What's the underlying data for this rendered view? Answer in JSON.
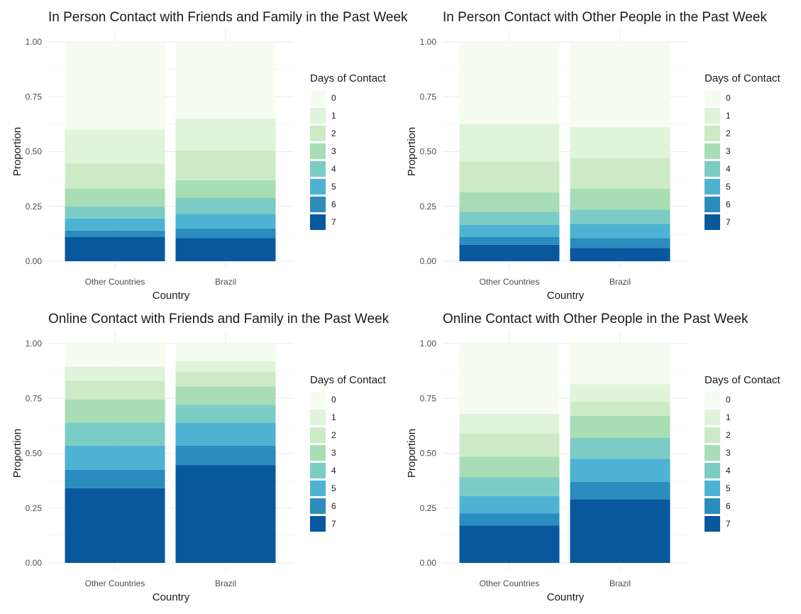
{
  "legend": {
    "title": "Days of Contact",
    "labels": [
      "0",
      "1",
      "2",
      "3",
      "4",
      "5",
      "6",
      "7"
    ]
  },
  "palette": [
    "#f7fcf0",
    "#e0f3db",
    "#ccebc5",
    "#a8ddb5",
    "#7bccc4",
    "#4eb3d3",
    "#2b8cbe",
    "#08589e"
  ],
  "chart_data": [
    {
      "type": "bar",
      "stacked": true,
      "title": "In Person Contact with Friends and Family in the Past Week",
      "xlabel": "Country",
      "ylabel": "Proportion",
      "ylim": [
        0,
        1
      ],
      "yticks": [
        "0.00",
        "0.25",
        "0.50",
        "0.75",
        "1.00"
      ],
      "categories": [
        "Other Countries",
        "Brazil"
      ],
      "series": [
        {
          "name": "0",
          "values": [
            0.4,
            0.35
          ]
        },
        {
          "name": "1",
          "values": [
            0.155,
            0.145
          ]
        },
        {
          "name": "2",
          "values": [
            0.115,
            0.135
          ]
        },
        {
          "name": "3",
          "values": [
            0.08,
            0.08
          ]
        },
        {
          "name": "4",
          "values": [
            0.055,
            0.075
          ]
        },
        {
          "name": "5",
          "values": [
            0.055,
            0.065
          ]
        },
        {
          "name": "6",
          "values": [
            0.03,
            0.045
          ]
        },
        {
          "name": "7",
          "values": [
            0.11,
            0.105
          ]
        }
      ],
      "grid": true,
      "legend_position": "right"
    },
    {
      "type": "bar",
      "stacked": true,
      "title": "In Person Contact with Other People in the Past Week",
      "xlabel": "Country",
      "ylabel": "Proportion",
      "ylim": [
        0,
        1
      ],
      "yticks": [
        "0.00",
        "0.25",
        "0.50",
        "0.75",
        "1.00"
      ],
      "categories": [
        "Other Countries",
        "Brazil"
      ],
      "series": [
        {
          "name": "0",
          "values": [
            0.375,
            0.39
          ]
        },
        {
          "name": "1",
          "values": [
            0.17,
            0.14
          ]
        },
        {
          "name": "2",
          "values": [
            0.14,
            0.14
          ]
        },
        {
          "name": "3",
          "values": [
            0.09,
            0.095
          ]
        },
        {
          "name": "4",
          "values": [
            0.06,
            0.065
          ]
        },
        {
          "name": "5",
          "values": [
            0.055,
            0.065
          ]
        },
        {
          "name": "6",
          "values": [
            0.035,
            0.045
          ]
        },
        {
          "name": "7",
          "values": [
            0.075,
            0.06
          ]
        }
      ],
      "grid": true,
      "legend_position": "right"
    },
    {
      "type": "bar",
      "stacked": true,
      "title": "Online Contact with Friends and Family in the Past Week",
      "xlabel": "Country",
      "ylabel": "Proportion",
      "ylim": [
        0,
        1
      ],
      "yticks": [
        "0.00",
        "0.25",
        "0.50",
        "0.75",
        "1.00"
      ],
      "categories": [
        "Other Countries",
        "Brazil"
      ],
      "series": [
        {
          "name": "0",
          "values": [
            0.11,
            0.08
          ]
        },
        {
          "name": "1",
          "values": [
            0.065,
            0.05
          ]
        },
        {
          "name": "2",
          "values": [
            0.085,
            0.065
          ]
        },
        {
          "name": "3",
          "values": [
            0.105,
            0.085
          ]
        },
        {
          "name": "4",
          "values": [
            0.105,
            0.08
          ]
        },
        {
          "name": "5",
          "values": [
            0.11,
            0.105
          ]
        },
        {
          "name": "6",
          "values": [
            0.085,
            0.09
          ]
        },
        {
          "name": "7",
          "values": [
            0.34,
            0.445
          ]
        }
      ],
      "grid": true,
      "legend_position": "right"
    },
    {
      "type": "bar",
      "stacked": true,
      "title": "Online Contact with Other People in the Past Week",
      "xlabel": "Country",
      "ylabel": "Proportion",
      "ylim": [
        0,
        1
      ],
      "yticks": [
        "0.00",
        "0.25",
        "0.50",
        "0.75",
        "1.00"
      ],
      "categories": [
        "Other Countries",
        "Brazil"
      ],
      "series": [
        {
          "name": "0",
          "values": [
            0.32,
            0.185
          ]
        },
        {
          "name": "1",
          "values": [
            0.09,
            0.08
          ]
        },
        {
          "name": "2",
          "values": [
            0.105,
            0.065
          ]
        },
        {
          "name": "3",
          "values": [
            0.095,
            0.1
          ]
        },
        {
          "name": "4",
          "values": [
            0.085,
            0.095
          ]
        },
        {
          "name": "5",
          "values": [
            0.08,
            0.105
          ]
        },
        {
          "name": "6",
          "values": [
            0.055,
            0.08
          ]
        },
        {
          "name": "7",
          "values": [
            0.17,
            0.29
          ]
        }
      ],
      "grid": true,
      "legend_position": "right"
    }
  ]
}
